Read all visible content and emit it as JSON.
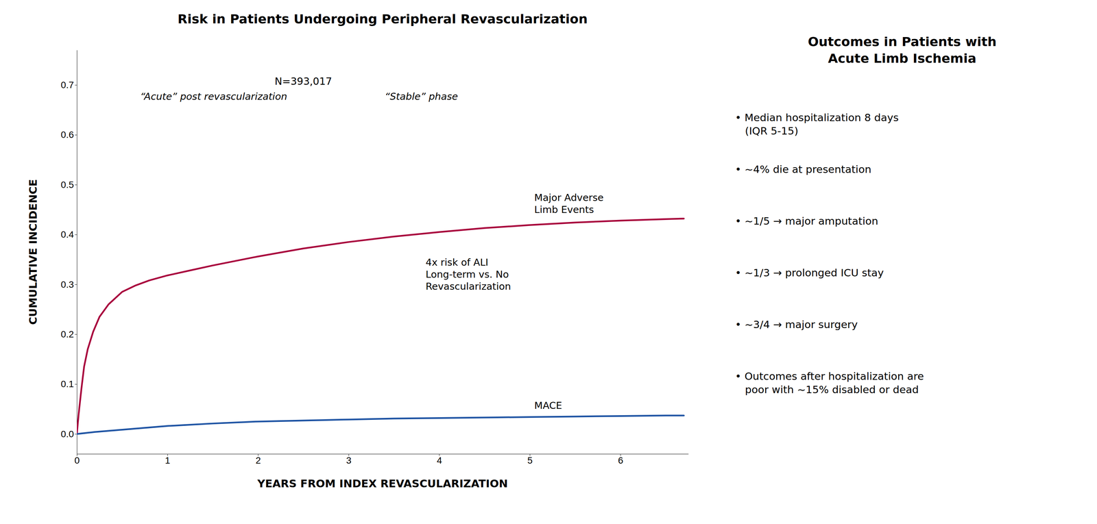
{
  "chart_data": {
    "type": "line",
    "title": "Risk in Patients Undergoing Peripheral Revascularization",
    "x_label": "YEARS FROM INDEX REVASCULARIZATION",
    "y_label": "CUMULATIVE INCIDENCE",
    "xlim": [
      0,
      6.75
    ],
    "ylim": [
      -0.04,
      0.77
    ],
    "xticks": [
      0,
      1,
      2,
      3,
      4,
      5,
      6
    ],
    "yticks": [
      {
        "value": 0.0,
        "label": "0.0"
      },
      {
        "value": 0.1,
        "label": "0.1"
      },
      {
        "value": 0.2,
        "label": "0.2"
      },
      {
        "value": 0.3,
        "label": "0.3"
      },
      {
        "value": 0.4,
        "label": "0.4"
      },
      {
        "value": 0.5,
        "label": "0.5"
      },
      {
        "value": 0.6,
        "label": "0.6"
      },
      {
        "value": 0.7,
        "label": "0.7"
      }
    ],
    "grid": false,
    "series": [
      {
        "color": "#A8003C",
        "x": [
          0.0,
          0.02,
          0.05,
          0.08,
          0.12,
          0.18,
          0.25,
          0.35,
          0.5,
          0.65,
          0.8,
          1.0,
          1.25,
          1.5,
          1.75,
          2.0,
          2.5,
          3.0,
          3.5,
          4.0,
          4.5,
          5.0,
          5.5,
          6.0,
          6.5,
          6.7
        ],
        "values": [
          0.0,
          0.04,
          0.09,
          0.135,
          0.17,
          0.205,
          0.235,
          0.26,
          0.285,
          0.298,
          0.308,
          0.318,
          0.328,
          0.338,
          0.347,
          0.356,
          0.372,
          0.385,
          0.396,
          0.405,
          0.413,
          0.419,
          0.424,
          0.428,
          0.431,
          0.432
        ]
      },
      {
        "color": "#2055A4",
        "x": [
          0.0,
          0.1,
          0.2,
          0.4,
          0.6,
          0.8,
          1.0,
          1.5,
          2.0,
          2.5,
          3.0,
          3.5,
          4.0,
          4.5,
          5.0,
          5.5,
          6.0,
          6.5,
          6.7
        ],
        "values": [
          0.0,
          0.002,
          0.004,
          0.007,
          0.01,
          0.013,
          0.016,
          0.021,
          0.025,
          0.027,
          0.029,
          0.031,
          0.032,
          0.033,
          0.034,
          0.035,
          0.036,
          0.037,
          0.037
        ]
      }
    ],
    "annotations": [
      "N=393,017",
      "“Acute” post revascularization",
      "“Stable” phase",
      "Major Adverse\nLimb Events",
      "4x risk of ALI\nLong-term vs. No\nRevascularization",
      "MACE"
    ],
    "side_title": "Outcomes in Patients with\nAcute Limb Ischemia",
    "side_notes": [
      "• Median hospitalization 8 days\n   (IQR 5-15)",
      "• ~4% die at presentation",
      "• ~1/5 → major amputation",
      "• ~1/3 → prolonged ICU stay",
      "• ~3/4 → major surgery",
      "• Outcomes after hospitalization are\n   poor with ~15% disabled or dead"
    ]
  }
}
